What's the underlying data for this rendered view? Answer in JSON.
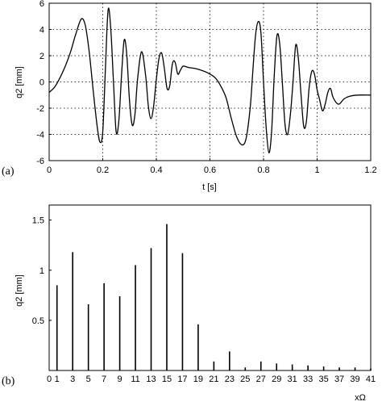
{
  "chart_data": [
    {
      "type": "line",
      "panel_label": "(a)",
      "xlabel": "t [s]",
      "ylabel": "q2 [mm]",
      "xlim": [
        0,
        1.2
      ],
      "ylim": [
        -6,
        6
      ],
      "grid": true,
      "x_ticks": [
        "0",
        "0.2",
        "0.4",
        "0.6",
        "0.8",
        "1",
        "1.2"
      ],
      "y_ticks": [
        "6",
        "4",
        "2",
        "0",
        "-2",
        "-4",
        "-6"
      ],
      "series": [
        {
          "x": [
            0,
            0.02,
            0.04,
            0.06,
            0.08,
            0.1,
            0.12,
            0.135,
            0.15,
            0.165,
            0.18,
            0.19,
            0.2,
            0.21,
            0.22,
            0.23,
            0.24,
            0.25,
            0.26,
            0.27,
            0.28,
            0.29,
            0.3,
            0.31,
            0.32,
            0.33,
            0.345,
            0.36,
            0.37,
            0.38,
            0.39,
            0.4,
            0.41,
            0.42,
            0.43,
            0.44,
            0.45,
            0.46,
            0.47,
            0.48,
            0.49,
            0.5,
            0.52,
            0.55,
            0.58,
            0.6,
            0.62,
            0.64,
            0.66,
            0.68,
            0.7,
            0.72,
            0.735,
            0.75,
            0.76,
            0.77,
            0.78,
            0.79,
            0.8,
            0.81,
            0.82,
            0.83,
            0.84,
            0.85,
            0.86,
            0.87,
            0.88,
            0.89,
            0.9,
            0.91,
            0.92,
            0.93,
            0.94,
            0.95,
            0.96,
            0.97,
            0.98,
            0.99,
            1.0,
            1.01,
            1.02,
            1.03,
            1.04,
            1.05,
            1.06,
            1.08,
            1.1,
            1.12,
            1.15,
            1.2
          ],
          "y": [
            -0.8,
            -0.4,
            0.3,
            1.2,
            2.3,
            3.7,
            4.8,
            4.3,
            2.2,
            -0.8,
            -3.5,
            -4.6,
            -3.8,
            1.0,
            5.5,
            4.0,
            0.0,
            -3.8,
            -3.0,
            0.5,
            3.2,
            2.0,
            -1.5,
            -3.3,
            -2.5,
            0.2,
            2.3,
            0.5,
            -1.8,
            -2.8,
            -1.8,
            0.2,
            1.8,
            2.2,
            1.0,
            -0.5,
            -0.3,
            1.4,
            1.5,
            0.6,
            0.9,
            1.2,
            1.1,
            1.0,
            0.8,
            0.6,
            0.3,
            -0.3,
            -1.2,
            -2.8,
            -4.2,
            -4.8,
            -4.3,
            -2.0,
            0.8,
            3.5,
            4.6,
            3.8,
            0.0,
            -3.5,
            -5.4,
            -3.8,
            0.5,
            3.5,
            3.0,
            0.0,
            -3.2,
            -4.0,
            -2.5,
            0.0,
            2.8,
            1.8,
            -1.0,
            -3.4,
            -3.0,
            -0.5,
            0.8,
            0.6,
            -0.6,
            -1.4,
            -2.2,
            -1.7,
            -0.8,
            -0.5,
            -1.2,
            -1.7,
            -1.3,
            -1.1,
            -1.0,
            -1.0
          ]
        }
      ]
    },
    {
      "type": "bar",
      "panel_label": "(b)",
      "xlabel": "xΩ",
      "ylabel": "q2 [mm]",
      "xlim": [
        0,
        41
      ],
      "ylim": [
        0,
        1.65
      ],
      "grid": false,
      "x_ticks": [
        "0",
        "1",
        "3",
        "5",
        "7",
        "9",
        "11",
        "13",
        "15",
        "17",
        "19",
        "21",
        "23",
        "25",
        "27",
        "29",
        "31",
        "33",
        "35",
        "37",
        "39",
        "41"
      ],
      "y_ticks": [
        "1.5",
        "1",
        "0.5"
      ],
      "categories": [
        1,
        3,
        5,
        7,
        9,
        11,
        13,
        15,
        17,
        19,
        21,
        23,
        25,
        27,
        29,
        31,
        33,
        35,
        37,
        39,
        41
      ],
      "values": [
        0.85,
        1.18,
        0.66,
        0.87,
        0.74,
        1.05,
        1.22,
        1.46,
        1.17,
        0.46,
        0.09,
        0.19,
        0.03,
        0.09,
        0.07,
        0.06,
        0.05,
        0.04,
        0.03,
        0.03,
        0.02
      ]
    }
  ]
}
